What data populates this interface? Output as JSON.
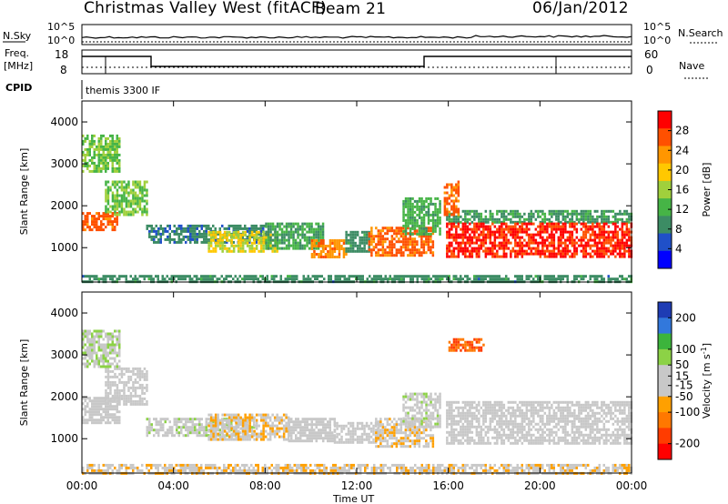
{
  "header": {
    "station": "Christmas Valley West (fitACF)",
    "beam": "Beam 21",
    "date": "06/Jan/2012"
  },
  "strips": {
    "nsky_label": "N.Sky",
    "nsky_ticks": [
      "10^5",
      "10^0"
    ],
    "nsearch_label": "N.Search",
    "nsearch_ticks": [
      "10^5",
      "10^0"
    ],
    "freq_label_1": "Freq.",
    "freq_label_2": "[MHz]",
    "freq_ticks": [
      "18",
      "8"
    ],
    "nave_label": "Nave",
    "nave_ticks": [
      "60",
      "0"
    ],
    "cpid_label": "CPID",
    "cpid_value": "themis 3300 IF"
  },
  "colors": {
    "power_scale": [
      "#0000ff",
      "#2050c8",
      "#3c8c64",
      "#46b446",
      "#a0d03c",
      "#ffc800",
      "#ff9600",
      "#ff5000",
      "#ff0000"
    ],
    "velocity_scale": [
      "#1e3cb4",
      "#3278dc",
      "#3cb43c",
      "#8cd246",
      "#c8c8c8",
      "#c8c8c8",
      "#ffa000",
      "#ff7800",
      "#ff3c00",
      "#ff0000"
    ]
  },
  "chart_data": [
    {
      "type": "heatmap",
      "panel": "power",
      "ylabel": "Slant Range [km]",
      "xlabel": "Time UT",
      "x_ticks": [
        "00:00",
        "04:00",
        "08:00",
        "12:00",
        "16:00",
        "20:00",
        "00:00"
      ],
      "xlim": [
        0,
        24
      ],
      "y_ticks": [
        1000,
        2000,
        3000,
        4000
      ],
      "ylim": [
        180,
        4500
      ],
      "colorbar_label": "Power [dB]",
      "colorbar_ticks": [
        4,
        8,
        12,
        16,
        20,
        24,
        28
      ],
      "colorbar_range": [
        0,
        32
      ],
      "regions": [
        {
          "t": [
            0.0,
            1.5
          ],
          "r": [
            1450,
            1850
          ],
          "level": 26
        },
        {
          "t": [
            1.0,
            2.8
          ],
          "r": [
            1800,
            2600
          ],
          "level": 14
        },
        {
          "t": [
            0.0,
            1.6
          ],
          "r": [
            2850,
            3700
          ],
          "level": 14
        },
        {
          "t": [
            2.8,
            8.0
          ],
          "r": [
            1100,
            1550
          ],
          "level": 8
        },
        {
          "t": [
            5.5,
            8.5
          ],
          "r": [
            900,
            1400
          ],
          "level": 18
        },
        {
          "t": [
            8.0,
            10.5
          ],
          "r": [
            950,
            1600
          ],
          "level": 11
        },
        {
          "t": [
            10.0,
            11.5
          ],
          "r": [
            800,
            1200
          ],
          "level": 24
        },
        {
          "t": [
            11.5,
            12.5
          ],
          "r": [
            900,
            1400
          ],
          "level": 9
        },
        {
          "t": [
            12.5,
            15.3
          ],
          "r": [
            800,
            1500
          ],
          "level": 26
        },
        {
          "t": [
            14.0,
            15.6
          ],
          "r": [
            1300,
            2200
          ],
          "level": 12
        },
        {
          "t": [
            15.9,
            24.0
          ],
          "r": [
            1600,
            1900
          ],
          "level": 10
        },
        {
          "t": [
            15.9,
            24.0
          ],
          "r": [
            800,
            1600
          ],
          "level": 29
        },
        {
          "t": [
            15.8,
            16.4
          ],
          "r": [
            1800,
            2600
          ],
          "level": 26
        },
        {
          "t": [
            0.0,
            24.0
          ],
          "r": [
            200,
            350
          ],
          "level": 9
        }
      ]
    },
    {
      "type": "heatmap",
      "panel": "velocity",
      "ylabel": "Slant Range [km]",
      "xlabel": "Time UT",
      "x_ticks": [
        "00:00",
        "04:00",
        "08:00",
        "12:00",
        "16:00",
        "20:00",
        "00:00"
      ],
      "xlim": [
        0,
        24
      ],
      "y_ticks": [
        1000,
        2000,
        3000,
        4000
      ],
      "ylim": [
        180,
        4500
      ],
      "colorbar_label": "Velocity [m s^-1]",
      "colorbar_ticks": [
        200,
        100,
        50,
        15,
        -15,
        -50,
        -100,
        -200
      ],
      "colorbar_range": [
        -250,
        250
      ],
      "regions": [
        {
          "t": [
            0.0,
            1.6
          ],
          "r": [
            1400,
            2000
          ],
          "level": 0
        },
        {
          "t": [
            1.0,
            2.8
          ],
          "r": [
            1800,
            2700
          ],
          "level": 0
        },
        {
          "t": [
            0.0,
            1.6
          ],
          "r": [
            2700,
            3600
          ],
          "level": 40
        },
        {
          "t": [
            2.8,
            7.5
          ],
          "r": [
            1100,
            1500
          ],
          "level": 30
        },
        {
          "t": [
            5.5,
            9.0
          ],
          "r": [
            950,
            1600
          ],
          "level": -40
        },
        {
          "t": [
            9.0,
            11.0
          ],
          "r": [
            950,
            1500
          ],
          "level": 20
        },
        {
          "t": [
            11.0,
            13.0
          ],
          "r": [
            900,
            1400
          ],
          "level": 0
        },
        {
          "t": [
            12.8,
            15.3
          ],
          "r": [
            800,
            1500
          ],
          "level": -40
        },
        {
          "t": [
            14.0,
            15.6
          ],
          "r": [
            1300,
            2100
          ],
          "level": 30
        },
        {
          "t": [
            15.9,
            24.0
          ],
          "r": [
            900,
            1900
          ],
          "level": 0
        },
        {
          "t": [
            16.0,
            17.5
          ],
          "r": [
            3100,
            3400
          ],
          "level": -150
        },
        {
          "t": [
            0.0,
            24.0
          ],
          "r": [
            200,
            400
          ],
          "level": -40
        }
      ]
    }
  ]
}
